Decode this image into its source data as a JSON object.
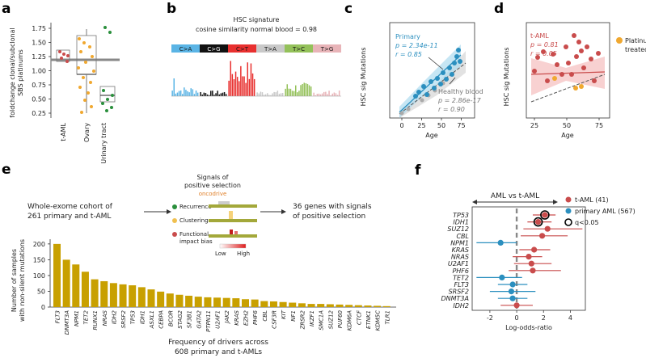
{
  "panel_labels": {
    "a": "a",
    "b": "b",
    "c": "c",
    "d": "d",
    "e": "e",
    "f": "f"
  },
  "colors": {
    "red": "#c94c4c",
    "orange": "#f0a830",
    "green": "#2a8f3c",
    "blue": "#2b8fbf",
    "gold": "#c8a000",
    "salmon": "#f3b3b3",
    "c_a": "#5ab4e5",
    "c_g": "#111111",
    "c_t": "#e8302f",
    "t_a": "#c9c9c9",
    "t_c": "#94c15a",
    "t_g": "#e8b4b8"
  },
  "panel_a": {
    "ylabel_line1": "foldchange clonal/subclonal",
    "ylabel_line2": "SBS platinums",
    "yticks": [
      "0.25",
      "0.50",
      "0.75",
      "1.00",
      "1.25",
      "1.50",
      "1.75"
    ],
    "categories": [
      "t-AML",
      "Ovary",
      "Urinary tract"
    ]
  },
  "panel_b": {
    "title": "HSC signature",
    "subtitle": "cosine similarity normal blood = 0.98",
    "mutation_classes": [
      "C>A",
      "C>G",
      "C>T",
      "T>A",
      "T>C",
      "T>G"
    ]
  },
  "panel_c": {
    "ylabel": "HSC sig Mutations",
    "xlabel": "Age",
    "xticks": [
      "0",
      "25",
      "50",
      "75"
    ],
    "primary_label": "Primary",
    "primary_p": "p = 2.34e-11",
    "primary_r": "r = 0.85",
    "healthy_label": "Healthy blood",
    "healthy_p": "p = 2.86e-17",
    "healthy_r": "r = 0.90"
  },
  "panel_d": {
    "ylabel": "HSC sig Mutations",
    "xlabel": "Age",
    "xticks": [
      "25",
      "50",
      "75"
    ],
    "taml_label": "t-AML",
    "taml_p": "p = 0.81",
    "taml_r": "r = 0.05",
    "legend_line1": "Platinum",
    "legend_line2": "treated"
  },
  "panel_e": {
    "cohort_line1": "Whole-exome cohort of",
    "cohort_line2": "261 primary and t-AML",
    "signals_title_1": "Signals of",
    "signals_title_2": "positive selection",
    "logo_text": "oncodrive",
    "signal_items": [
      "Recurrence",
      "Clustering",
      "Functional",
      "impact bias"
    ],
    "scale_low": "Low",
    "scale_high": "High",
    "result_line1": "36 genes with signals",
    "result_line2": "of positive selection",
    "ylabel_line1": "Number of samples",
    "ylabel_line2": "with non-silent mutations",
    "xlabel_line1": "Frequency of drivers across",
    "xlabel_line2": "608 primary and t-AMLs",
    "yticks": [
      "0",
      "50",
      "100",
      "150",
      "200"
    ]
  },
  "chart_data": [
    {
      "type": "bar",
      "title": "",
      "xlabel": "Frequency of drivers across 608 primary and t-AMLs",
      "ylabel": "Number of samples with non-silent mutations",
      "ylim": [
        0,
        215
      ],
      "categories": [
        "FLT3",
        "DNMT3A",
        "NPM1",
        "TET2",
        "RUNX1",
        "NRAS",
        "IDH2",
        "SRSF2",
        "TP53",
        "IDH1",
        "ASXL1",
        "CEBPA",
        "BCOR",
        "STAG2",
        "SF3B1",
        "GATA2",
        "PTPN11",
        "U2AF1",
        "JAK2",
        "KRAS",
        "EZH2",
        "PHF6",
        "CBL",
        "CSF3R",
        "KIT",
        "NF1",
        "ZRSR2",
        "IKZF1",
        "SMC1A",
        "SUZ12",
        "PUF60",
        "KDM6A",
        "CTCF",
        "ETNK1",
        "KDM5C",
        "TLR1"
      ],
      "values": [
        200,
        150,
        135,
        112,
        88,
        82,
        76,
        72,
        69,
        63,
        56,
        49,
        43,
        39,
        36,
        33,
        31,
        30,
        29,
        28,
        25,
        24,
        19,
        18,
        16,
        14,
        12,
        10,
        10,
        9,
        8,
        7,
        6,
        5,
        4,
        3
      ]
    },
    {
      "type": "scatter",
      "title": "AML vs t-AML",
      "xlabel": "Log-odds-ratio",
      "ylabel": "",
      "xlim": [
        -3.2,
        5
      ],
      "xticks": [
        -2,
        0,
        2,
        4
      ],
      "legend": [
        "t-AML (41)",
        "primary AML (567)",
        "q<0.05"
      ],
      "genes": [
        "TP53",
        "IDH1",
        "SUZ12",
        "CBL",
        "NPM1",
        "KRAS",
        "NRAS",
        "U2AF1",
        "PHF6",
        "TET2",
        "FLT3",
        "SRSF2",
        "DNMT3A",
        "IDH2"
      ],
      "log_odds": [
        2.1,
        1.6,
        2.3,
        1.9,
        -1.2,
        1.3,
        0.9,
        1.1,
        1.2,
        -1.1,
        -0.3,
        -0.4,
        -0.3,
        0.0
      ],
      "ci_low": [
        1.2,
        0.8,
        0.5,
        0.3,
        -3.0,
        0.2,
        -0.3,
        -0.2,
        -0.6,
        -3.0,
        -1.4,
        -2.0,
        -1.4,
        -1.2
      ],
      "ci_high": [
        2.9,
        2.6,
        4.9,
        3.8,
        0.0,
        2.5,
        1.9,
        2.6,
        3.3,
        0.4,
        0.8,
        1.4,
        0.8,
        1.2
      ],
      "group": [
        "t-AML",
        "t-AML",
        "t-AML",
        "t-AML",
        "primary AML",
        "t-AML",
        "t-AML",
        "t-AML",
        "t-AML",
        "primary AML",
        "primary AML",
        "primary AML",
        "primary AML",
        "t-AML"
      ],
      "significant": [
        true,
        true,
        false,
        false,
        false,
        false,
        false,
        false,
        false,
        false,
        false,
        false,
        false,
        false
      ]
    }
  ]
}
